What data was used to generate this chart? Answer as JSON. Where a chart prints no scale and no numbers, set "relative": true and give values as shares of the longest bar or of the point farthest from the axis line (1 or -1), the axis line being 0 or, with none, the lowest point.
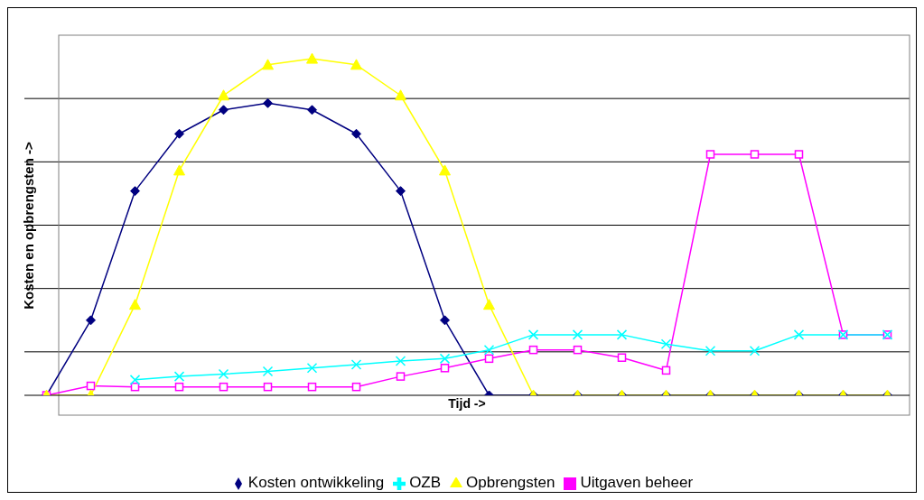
{
  "chart_data": {
    "type": "line",
    "relative": true,
    "xlabel": "Tijd ->",
    "ylabel": "Kosten en opbrengsten ->",
    "grid": "y",
    "legend": "bottom",
    "categories": [
      null,
      null,
      null,
      null,
      null,
      null,
      null,
      null,
      null,
      null,
      null,
      null,
      null,
      null,
      null,
      null,
      null,
      null,
      null,
      null
    ],
    "series": [
      {
        "name": "Kosten ontwikkeling",
        "color": "#000080",
        "marker": "diamond",
        "values": [
          0,
          0.223,
          0.607,
          0.777,
          0.848,
          0.868,
          0.848,
          0.777,
          0.607,
          0.223,
          0,
          0,
          0,
          0,
          0,
          0,
          0,
          0,
          0,
          0
        ]
      },
      {
        "name": "Uitgaven beheer",
        "color": "#ff00ff",
        "marker": "square",
        "values": [
          0,
          0.028,
          0.025,
          0.025,
          0.025,
          0.025,
          0.025,
          0.025,
          0.056,
          0.081,
          0.109,
          0.135,
          0.135,
          0.112,
          0.074,
          0.716,
          0.716,
          0.716,
          0.18,
          0.18
        ]
      },
      {
        "name": "Opbrengsten",
        "color": "#ffff00",
        "marker": "triangle",
        "values": [
          0,
          0,
          0.269,
          0.668,
          0.891,
          0.982,
          1,
          0.982,
          0.891,
          0.668,
          0.269,
          0,
          0,
          0,
          0,
          0,
          0,
          0,
          0,
          0
        ]
      },
      {
        "name": "OZB",
        "color": "#00ffff",
        "marker": "cross",
        "values": [
          null,
          null,
          0.046,
          0.056,
          0.063,
          0.071,
          0.081,
          0.091,
          0.102,
          0.109,
          0.135,
          0.18,
          0.18,
          0.18,
          0.152,
          0.132,
          0.132,
          0.18,
          0.18,
          0.18
        ]
      }
    ]
  }
}
